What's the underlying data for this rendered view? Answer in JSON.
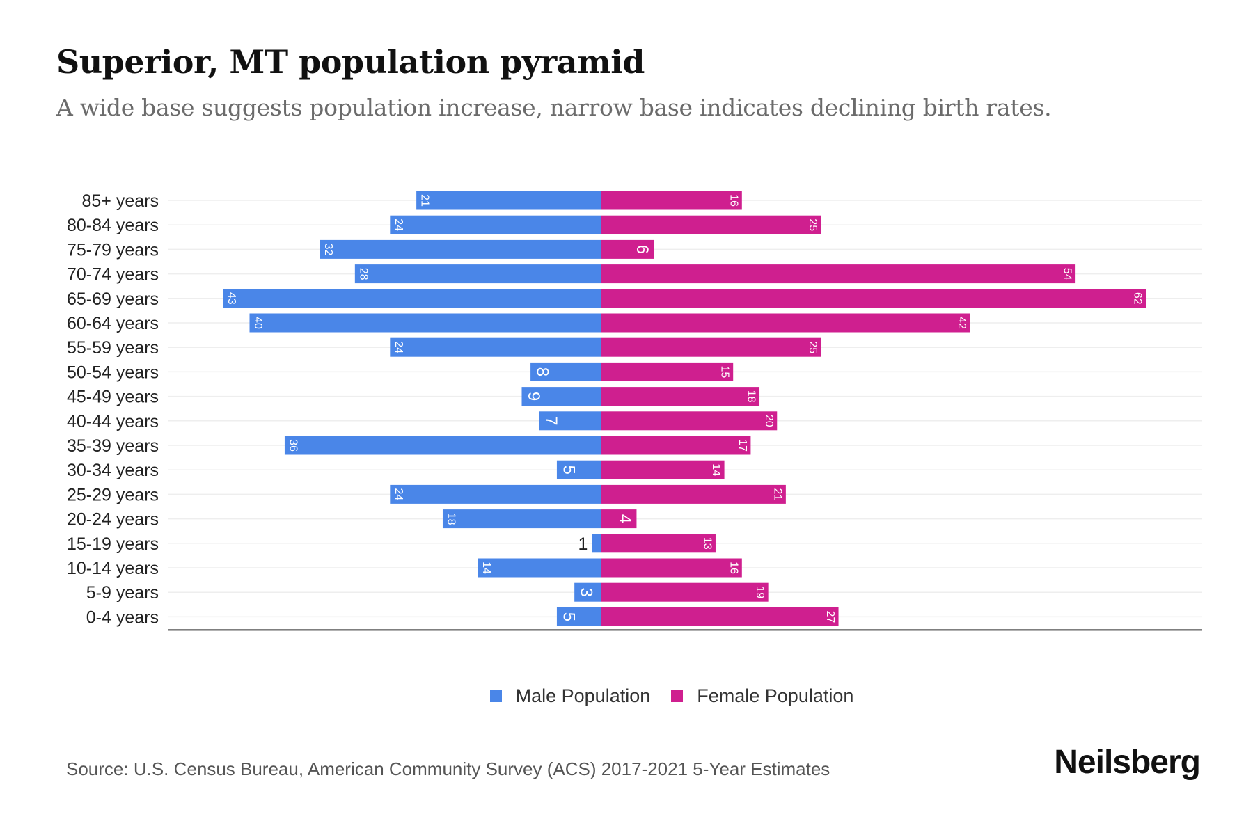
{
  "header": {
    "title": "Superior, MT population pyramid",
    "subtitle": "A wide base suggests population increase, narrow base indicates declining birth rates."
  },
  "colors": {
    "male": "#4A86E8",
    "female": "#CF1F8F",
    "axis": "#333333",
    "grid": "#eeeeee"
  },
  "chart_data": {
    "type": "bar",
    "orientation": "horizontal-pyramid",
    "title": "Superior, MT population pyramid",
    "subtitle": "A wide base suggests population increase, narrow base indicates declining birth rates.",
    "xlabel": "",
    "ylabel": "",
    "grid": true,
    "legend_position": "bottom-center",
    "categories": [
      "85+ years",
      "80-84 years",
      "75-79 years",
      "70-74 years",
      "65-69 years",
      "60-64 years",
      "55-59 years",
      "50-54 years",
      "45-49 years",
      "40-44 years",
      "35-39 years",
      "30-34 years",
      "25-29 years",
      "20-24 years",
      "15-19 years",
      "10-14 years",
      "5-9 years",
      "0-4 years"
    ],
    "series": [
      {
        "name": "Male Population",
        "side": "left",
        "values": [
          21,
          24,
          32,
          28,
          43,
          40,
          24,
          8,
          9,
          7,
          36,
          5,
          24,
          18,
          1,
          14,
          3,
          5
        ]
      },
      {
        "name": "Female Population",
        "side": "right",
        "values": [
          16,
          25,
          6,
          54,
          62,
          42,
          25,
          15,
          18,
          20,
          17,
          14,
          21,
          4,
          13,
          16,
          19,
          27
        ]
      }
    ],
    "xlim": [
      -49,
      68
    ]
  },
  "legend": {
    "male_label": "Male Population",
    "female_label": "Female Population"
  },
  "footer": {
    "source": "Source: U.S. Census Bureau, American Community Survey (ACS) 2017-2021 5-Year Estimates",
    "logo": "Neilsberg"
  }
}
